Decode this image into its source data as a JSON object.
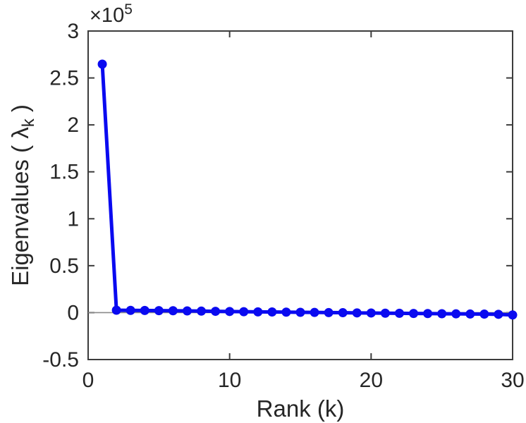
{
  "figure": {
    "background_color": "#ffffff"
  },
  "chart_data": {
    "type": "line",
    "title": "",
    "xlabel": "Rank (k)",
    "ylabel": "Eigenvalues ( λ_k )",
    "y_axis_multiplier": "×10^5",
    "x": [
      1,
      2,
      3,
      4,
      5,
      6,
      7,
      8,
      9,
      10,
      11,
      12,
      13,
      14,
      15,
      16,
      17,
      18,
      19,
      20,
      21,
      22,
      23,
      24,
      25,
      26,
      27,
      28,
      29,
      30
    ],
    "values": [
      264700,
      2600,
      2400,
      2300,
      2100,
      2000,
      1800,
      1600,
      1400,
      1200,
      1000,
      800,
      700,
      500,
      300,
      200,
      0,
      -100,
      -300,
      -400,
      -600,
      -700,
      -900,
      -1000,
      -1200,
      -1300,
      -1500,
      -1600,
      -1800,
      -2500
    ],
    "xlim": [
      0,
      30
    ],
    "ylim": [
      -50000,
      300000
    ],
    "x_ticks": [
      0,
      10,
      20,
      30
    ],
    "x_tick_labels": [
      "0",
      "10",
      "20",
      "30"
    ],
    "y_ticks": [
      -50000,
      0,
      50000,
      100000,
      150000,
      200000,
      250000,
      300000
    ],
    "y_tick_labels": [
      "-0.5",
      "0",
      "0.5",
      "1",
      "1.5",
      "2",
      "2.5",
      "3"
    ],
    "grid": false,
    "legend": null,
    "box": true,
    "ticks_direction": "in",
    "zero_line": true,
    "marker": "circle",
    "line_color": "#0A0AF0",
    "marker_color": "#0A0AF0",
    "axis_color": "#3c3c3c",
    "text_color": "#262626",
    "zero_line_color": "#8a8a8a"
  }
}
